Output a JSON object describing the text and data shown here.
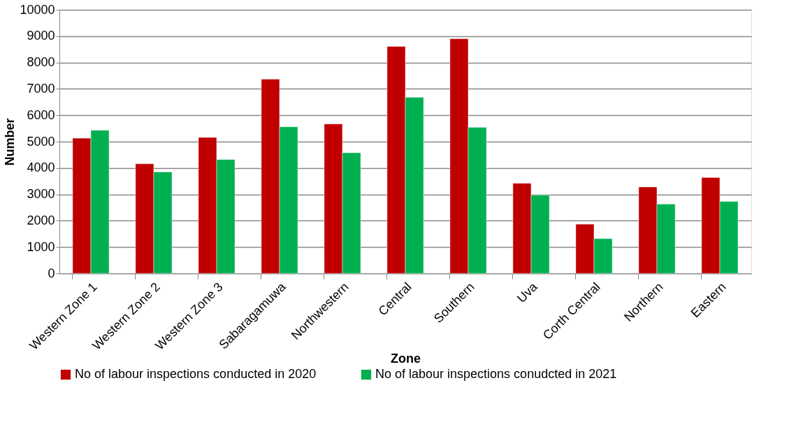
{
  "chart_data": {
    "type": "bar",
    "xlabel": "Zone",
    "ylabel": "Number",
    "categories": [
      "Western Zone 1",
      "Western Zone 2",
      "Western Zone 3",
      "Sabaragamuwa",
      "Northwestern",
      "Central",
      "Southern",
      "Uva",
      "Corth Central",
      "Northern",
      "Eastern"
    ],
    "series": [
      {
        "name": "No of labour inspections conducted in 2020",
        "color": "#c00000",
        "values": [
          5130,
          4160,
          5160,
          7370,
          5670,
          8610,
          8900,
          3420,
          1870,
          3280,
          3640
        ]
      },
      {
        "name": "No of labour inspections conudcted in 2021",
        "color": "#00b050",
        "values": [
          5430,
          3850,
          4320,
          5560,
          4580,
          6680,
          5540,
          2970,
          1320,
          2630,
          2730
        ]
      }
    ],
    "ylim": [
      0,
      10000
    ],
    "yticks": [
      0,
      1000,
      2000,
      3000,
      4000,
      5000,
      6000,
      7000,
      8000,
      9000,
      10000
    ],
    "grid": "y",
    "legend": "bottom"
  }
}
